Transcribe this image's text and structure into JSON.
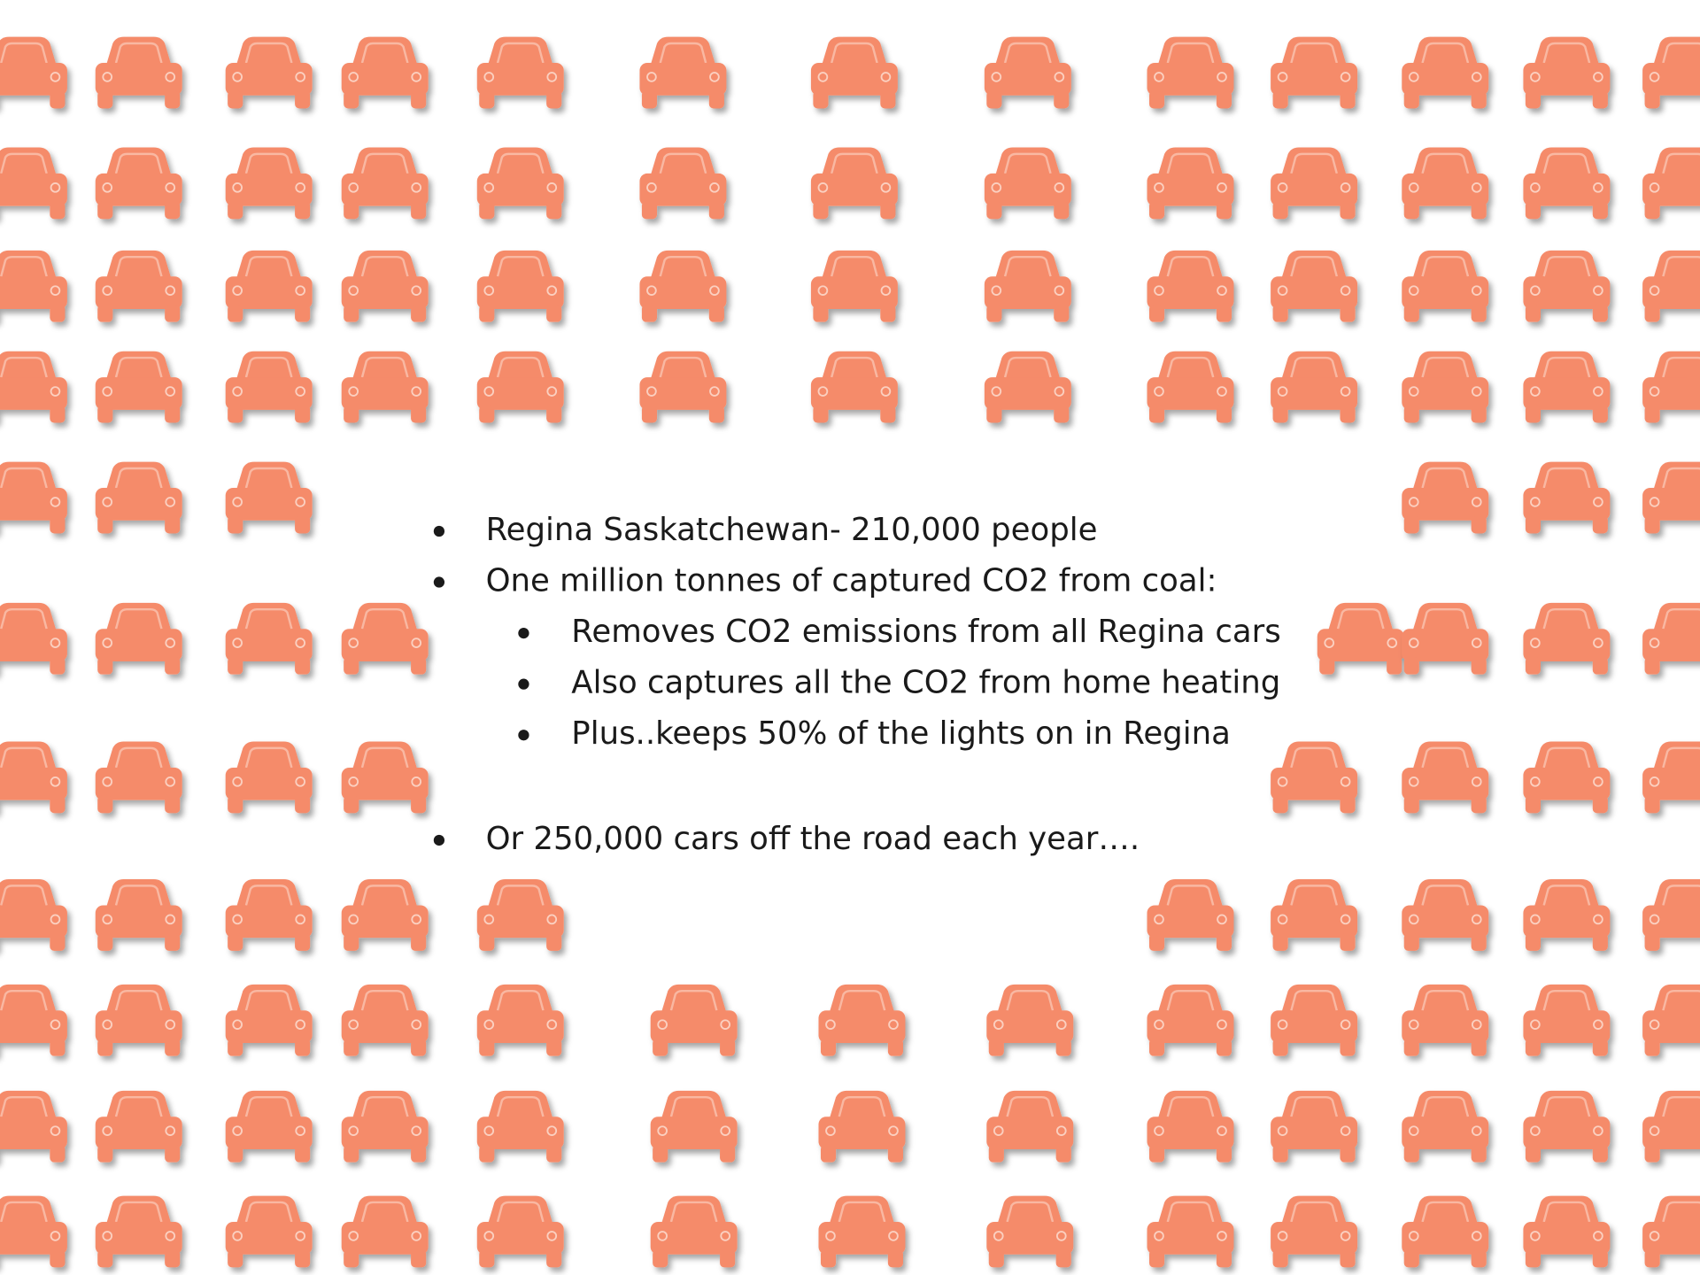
{
  "slide": {
    "bullets": [
      {
        "text": "Regina Saskatchewan- 210,000 people",
        "level": 1
      },
      {
        "text": "One million tonnes of captured CO2 from coal:",
        "level": 1
      },
      {
        "text": "Removes CO2 emissions from all Regina cars",
        "level": 2
      },
      {
        "text": "Also captures all the CO2 from home heating",
        "level": 2
      },
      {
        "text": "Plus..keeps 50% of the lights on in Regina",
        "level": 2
      },
      {
        "text": "Or 250,000 cars off the road each year….",
        "level": 1
      }
    ]
  }
}
